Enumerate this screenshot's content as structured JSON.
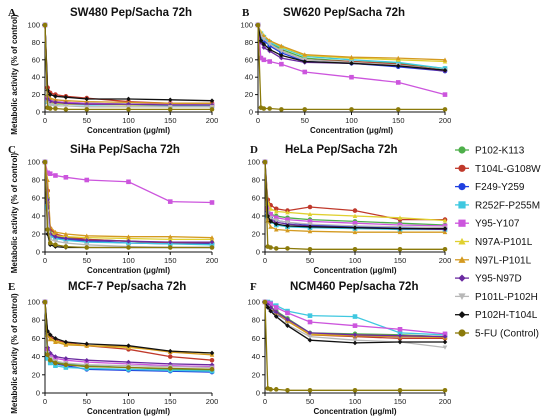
{
  "legend_series": [
    {
      "name": "P102-K113",
      "color": "#4daf4a",
      "marker": "circle"
    },
    {
      "name": "T104L-G108W",
      "color": "#c0392b",
      "marker": "circle"
    },
    {
      "name": "F249-Y259",
      "color": "#1f3fe0",
      "marker": "circle"
    },
    {
      "name": "R252F-P255M",
      "color": "#3fc8e0",
      "marker": "square"
    },
    {
      "name": "Y95-Y107",
      "color": "#cc55dd",
      "marker": "square"
    },
    {
      "name": "N97A-P101L",
      "color": "#e0d030",
      "marker": "triangle"
    },
    {
      "name": "N97L-P101L",
      "color": "#d49a20",
      "marker": "triangle"
    },
    {
      "name": "Y95-N97D",
      "color": "#6a2aa0",
      "marker": "diamond"
    },
    {
      "name": "P101L-P102H",
      "color": "#b8b8b8",
      "marker": "triangle-down"
    },
    {
      "name": "P102H-T104L",
      "color": "#111111",
      "marker": "diamond"
    },
    {
      "name": "5-FU (Control)",
      "color": "#8b7a0a",
      "marker": "circle"
    }
  ],
  "chart_data": [
    {
      "type": "line",
      "letter": "A",
      "title": "SW480 Pep/Sacha 72h",
      "xlabel": "Concentration (μg/ml)",
      "ylabel": "Metabolic activity (% of control)",
      "xlim": [
        0,
        200
      ],
      "ylim": [
        0,
        100
      ],
      "xticks": [
        0,
        50,
        100,
        150,
        200
      ],
      "yticks": [
        0,
        20,
        40,
        60,
        80,
        100
      ],
      "x": [
        0,
        3.125,
        6.25,
        12.5,
        25,
        50,
        100,
        150,
        200
      ],
      "series": [
        {
          "name": "P102-K113",
          "values": [
            100,
            18,
            14,
            12,
            11,
            10,
            9,
            8,
            8
          ]
        },
        {
          "name": "T104L-G108W",
          "values": [
            100,
            28,
            22,
            20,
            18,
            16,
            12,
            10,
            10
          ]
        },
        {
          "name": "F249-Y259",
          "values": [
            100,
            14,
            11,
            10,
            9,
            9,
            8,
            8,
            8
          ]
        },
        {
          "name": "R252F-P255M",
          "values": [
            100,
            12,
            10,
            9,
            9,
            8,
            8,
            7,
            7
          ]
        },
        {
          "name": "Y95-Y107",
          "values": [
            100,
            16,
            13,
            12,
            11,
            10,
            9,
            9,
            8
          ]
        },
        {
          "name": "N97A-P101L",
          "values": [
            100,
            13,
            11,
            10,
            9,
            9,
            8,
            8,
            8
          ]
        },
        {
          "name": "N97L-P101L",
          "values": [
            100,
            20,
            16,
            14,
            13,
            12,
            11,
            10,
            10
          ]
        },
        {
          "name": "Y95-N97D",
          "values": [
            100,
            15,
            12,
            11,
            10,
            9,
            9,
            8,
            8
          ]
        },
        {
          "name": "P101L-P102H",
          "values": [
            100,
            10,
            8,
            7,
            7,
            6,
            6,
            6,
            6
          ]
        },
        {
          "name": "P102H-T104L",
          "values": [
            100,
            25,
            20,
            18,
            17,
            15,
            15,
            14,
            13
          ]
        },
        {
          "name": "5-FU (Control)",
          "values": [
            100,
            5,
            4,
            4,
            3,
            3,
            3,
            3,
            3
          ]
        }
      ]
    },
    {
      "type": "line",
      "letter": "B",
      "title": "SW620 Pep/Sacha 72h",
      "xlabel": "Concentration (μg/ml)",
      "ylabel": "",
      "xlim": [
        0,
        200
      ],
      "ylim": [
        0,
        100
      ],
      "xticks": [
        0,
        50,
        100,
        150,
        200
      ],
      "yticks": [
        0,
        20,
        40,
        60,
        80,
        100
      ],
      "x": [
        0,
        3.125,
        6.25,
        12.5,
        25,
        50,
        100,
        150,
        200
      ],
      "series": [
        {
          "name": "P102-K113",
          "values": [
            100,
            90,
            85,
            80,
            72,
            62,
            58,
            56,
            50
          ]
        },
        {
          "name": "T104L-G108W",
          "values": [
            100,
            88,
            84,
            78,
            70,
            60,
            58,
            55,
            48
          ]
        },
        {
          "name": "F249-Y259",
          "values": [
            100,
            86,
            82,
            76,
            68,
            58,
            56,
            52,
            47
          ]
        },
        {
          "name": "R252F-P255M",
          "values": [
            100,
            90,
            86,
            80,
            74,
            64,
            60,
            57,
            50
          ]
        },
        {
          "name": "Y95-Y107",
          "values": [
            100,
            62,
            60,
            58,
            55,
            46,
            40,
            34,
            20
          ]
        },
        {
          "name": "N97A-P101L",
          "values": [
            100,
            92,
            88,
            82,
            75,
            65,
            62,
            60,
            58
          ]
        },
        {
          "name": "N97L-P101L",
          "values": [
            100,
            90,
            87,
            82,
            76,
            66,
            63,
            62,
            60
          ]
        },
        {
          "name": "Y95-N97D",
          "values": [
            100,
            80,
            74,
            70,
            62,
            57,
            56,
            53,
            47
          ]
        },
        {
          "name": "P101L-P102H",
          "values": [
            100,
            88,
            84,
            78,
            70,
            60,
            57,
            54,
            48
          ]
        },
        {
          "name": "P102H-T104L",
          "values": [
            100,
            82,
            78,
            72,
            65,
            58,
            56,
            53,
            48
          ]
        },
        {
          "name": "5-FU (Control)",
          "values": [
            100,
            5,
            4,
            4,
            3,
            3,
            3,
            3,
            3
          ]
        }
      ]
    },
    {
      "type": "line",
      "letter": "C",
      "title": "SiHa Pep/Sacha 72h",
      "xlabel": "Concentration (μg/ml)",
      "ylabel": "Metabolic activity (% of control)",
      "xlim": [
        0,
        200
      ],
      "ylim": [
        0,
        100
      ],
      "xticks": [
        0,
        50,
        100,
        150,
        200
      ],
      "yticks": [
        0,
        20,
        40,
        60,
        80,
        100
      ],
      "x": [
        0,
        3.125,
        6.25,
        12.5,
        25,
        50,
        100,
        150,
        200
      ],
      "series": [
        {
          "name": "P102-K113",
          "values": [
            100,
            60,
            22,
            18,
            16,
            14,
            12,
            10,
            10
          ]
        },
        {
          "name": "T104L-G108W",
          "values": [
            100,
            68,
            26,
            20,
            17,
            14,
            12,
            10,
            10
          ]
        },
        {
          "name": "F249-Y259",
          "values": [
            100,
            55,
            20,
            16,
            14,
            12,
            10,
            9,
            9
          ]
        },
        {
          "name": "R252F-P255M",
          "values": [
            100,
            50,
            18,
            15,
            13,
            11,
            10,
            9,
            8
          ]
        },
        {
          "name": "Y95-Y107",
          "values": [
            100,
            88,
            87,
            85,
            83,
            80,
            78,
            56,
            55
          ]
        },
        {
          "name": "N97A-P101L",
          "values": [
            100,
            65,
            22,
            18,
            17,
            16,
            15,
            14,
            14
          ]
        },
        {
          "name": "N97L-P101L",
          "values": [
            100,
            80,
            28,
            22,
            20,
            18,
            17,
            17,
            16
          ]
        },
        {
          "name": "Y95-N97D",
          "values": [
            100,
            58,
            20,
            17,
            15,
            13,
            12,
            11,
            11
          ]
        },
        {
          "name": "P101L-P102H",
          "values": [
            100,
            45,
            14,
            12,
            10,
            8,
            6,
            5,
            5
          ]
        },
        {
          "name": "P102H-T104L",
          "values": [
            100,
            20,
            8,
            6,
            5,
            5,
            5,
            5,
            5
          ]
        },
        {
          "name": "5-FU (Control)",
          "values": [
            100,
            25,
            10,
            8,
            6,
            5,
            5,
            5,
            5
          ]
        }
      ]
    },
    {
      "type": "line",
      "letter": "D",
      "title": "HeLa Pep/Sacha 72h",
      "xlabel": "Concentration (μg/ml)",
      "ylabel": "",
      "xlim": [
        0,
        200
      ],
      "ylim": [
        0,
        100
      ],
      "xticks": [
        0,
        50,
        100,
        150,
        200
      ],
      "yticks": [
        0,
        20,
        40,
        60,
        80,
        100
      ],
      "x": [
        0,
        3.125,
        6.25,
        12.5,
        25,
        50,
        100,
        150,
        200
      ],
      "series": [
        {
          "name": "P102-K113",
          "values": [
            100,
            50,
            42,
            40,
            38,
            36,
            34,
            32,
            30
          ]
        },
        {
          "name": "T104L-G108W",
          "values": [
            100,
            58,
            52,
            48,
            46,
            50,
            46,
            36,
            36
          ]
        },
        {
          "name": "F249-Y259",
          "values": [
            100,
            45,
            38,
            35,
            33,
            30,
            28,
            27,
            26
          ]
        },
        {
          "name": "R252F-P255M",
          "values": [
            100,
            40,
            34,
            30,
            28,
            27,
            26,
            25,
            25
          ]
        },
        {
          "name": "Y95-Y107",
          "values": [
            100,
            48,
            42,
            38,
            36,
            34,
            32,
            30,
            29
          ]
        },
        {
          "name": "N97A-P101L",
          "values": [
            100,
            55,
            48,
            45,
            44,
            42,
            40,
            38,
            35
          ]
        },
        {
          "name": "N97L-P101L",
          "values": [
            100,
            35,
            28,
            25,
            24,
            23,
            22,
            22,
            22
          ]
        },
        {
          "name": "Y95-N97D",
          "values": [
            100,
            42,
            36,
            33,
            31,
            29,
            27,
            26,
            25
          ]
        },
        {
          "name": "P101L-P102H",
          "values": [
            100,
            44,
            38,
            35,
            33,
            31,
            29,
            28,
            27
          ]
        },
        {
          "name": "P102H-T104L",
          "values": [
            100,
            40,
            34,
            31,
            29,
            28,
            27,
            26,
            26
          ]
        },
        {
          "name": "5-FU (Control)",
          "values": [
            100,
            6,
            5,
            4,
            4,
            3,
            3,
            3,
            3
          ]
        }
      ]
    },
    {
      "type": "line",
      "letter": "E",
      "title": "MCF-7 Pep/sacha 72h",
      "xlabel": "Concentration (μg/ml)",
      "ylabel": "Metabolic activity (% of control)",
      "xlim": [
        0,
        200
      ],
      "ylim": [
        0,
        100
      ],
      "xticks": [
        0,
        50,
        100,
        150,
        200
      ],
      "yticks": [
        0,
        20,
        40,
        60,
        80,
        100
      ],
      "x": [
        0,
        3.125,
        6.25,
        12.5,
        25,
        50,
        100,
        150,
        200
      ],
      "series": [
        {
          "name": "P102-K113",
          "values": [
            100,
            45,
            38,
            34,
            32,
            30,
            28,
            26,
            25
          ]
        },
        {
          "name": "T104L-G108W",
          "values": [
            100,
            66,
            62,
            58,
            55,
            52,
            48,
            40,
            36
          ]
        },
        {
          "name": "F249-Y259",
          "values": [
            100,
            40,
            35,
            32,
            30,
            26,
            25,
            24,
            23
          ]
        },
        {
          "name": "R252F-P255M",
          "values": [
            100,
            38,
            33,
            30,
            28,
            27,
            26,
            25,
            24
          ]
        },
        {
          "name": "Y95-Y107",
          "values": [
            100,
            48,
            42,
            38,
            36,
            34,
            32,
            30,
            29
          ]
        },
        {
          "name": "N97A-P101L",
          "values": [
            100,
            65,
            60,
            57,
            54,
            52,
            50,
            46,
            44
          ]
        },
        {
          "name": "N97L-P101L",
          "values": [
            100,
            64,
            59,
            56,
            53,
            52,
            51,
            45,
            42
          ]
        },
        {
          "name": "Y95-N97D",
          "values": [
            100,
            50,
            44,
            40,
            38,
            36,
            34,
            32,
            31
          ]
        },
        {
          "name": "P101L-P102H",
          "values": [
            100,
            44,
            38,
            35,
            33,
            31,
            30,
            29,
            28
          ]
        },
        {
          "name": "P102H-T104L",
          "values": [
            100,
            68,
            64,
            60,
            56,
            54,
            52,
            46,
            44
          ]
        },
        {
          "name": "5-FU (Control)",
          "values": [
            100,
            42,
            36,
            33,
            31,
            29,
            28,
            27,
            26
          ]
        }
      ]
    },
    {
      "type": "line",
      "letter": "F",
      "title": "NCM460 Pep/sacha 72h",
      "xlabel": "Concentration (μg/ml)",
      "ylabel": "",
      "xlim": [
        0,
        200
      ],
      "ylim": [
        0,
        100
      ],
      "xticks": [
        0,
        50,
        100,
        150,
        200
      ],
      "yticks": [
        0,
        20,
        40,
        60,
        80,
        100
      ],
      "x": [
        0,
        3.125,
        6.25,
        12.5,
        25,
        50,
        100,
        150,
        200
      ],
      "series": [
        {
          "name": "P102-K113",
          "values": [
            100,
            97,
            95,
            90,
            82,
            66,
            65,
            64,
            62
          ]
        },
        {
          "name": "T104L-G108W",
          "values": [
            100,
            96,
            93,
            88,
            80,
            64,
            62,
            60,
            60
          ]
        },
        {
          "name": "F249-Y259",
          "values": [
            100,
            95,
            92,
            87,
            79,
            65,
            63,
            62,
            62
          ]
        },
        {
          "name": "R252F-P255M",
          "values": [
            100,
            100,
            99,
            96,
            90,
            85,
            84,
            66,
            64
          ]
        },
        {
          "name": "Y95-Y107",
          "values": [
            100,
            99,
            98,
            94,
            88,
            78,
            74,
            70,
            65
          ]
        },
        {
          "name": "N97A-P101L",
          "values": [
            100,
            97,
            94,
            89,
            80,
            65,
            64,
            63,
            62
          ]
        },
        {
          "name": "N97L-P101L",
          "values": [
            100,
            96,
            93,
            88,
            79,
            64,
            63,
            62,
            61
          ]
        },
        {
          "name": "Y95-N97D",
          "values": [
            100,
            97,
            94,
            89,
            81,
            66,
            64,
            63,
            62
          ]
        },
        {
          "name": "P101L-P102H",
          "values": [
            100,
            94,
            90,
            84,
            75,
            62,
            58,
            56,
            50
          ]
        },
        {
          "name": "P102H-T104L",
          "values": [
            100,
            94,
            90,
            84,
            74,
            58,
            55,
            56,
            56
          ]
        },
        {
          "name": "5-FU (Control)",
          "values": [
            100,
            5,
            4,
            4,
            3,
            3,
            3,
            3,
            3
          ]
        }
      ]
    }
  ]
}
